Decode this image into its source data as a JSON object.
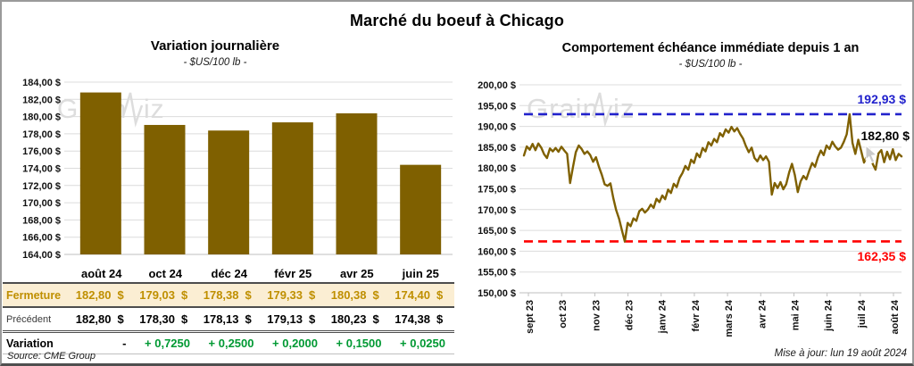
{
  "header": {
    "title": "Marché du boeuf à Chicago"
  },
  "footer": {
    "source": "Source: CME Group",
    "updated": "Mise à jour: lun 19 août 2024"
  },
  "watermark": "GrainWiz",
  "currency": "$",
  "colors": {
    "series": "#7F6000",
    "grid": "#DCDCDC",
    "axis": "#BFBFBF",
    "gold": "#BF8F00",
    "fermeture_bg": "#FBEED3",
    "green": "#009933",
    "blue": "#2222CC",
    "red": "#FF0000",
    "watermark": "#DCDCDC"
  },
  "table": {
    "columns": [
      "août 24",
      "oct 24",
      "déc 24",
      "févr 25",
      "avr 25",
      "juin 25"
    ],
    "rows": [
      {
        "key": "fermeture",
        "label": "Fermeture",
        "currency": true,
        "values": [
          "182,80",
          "179,03",
          "178,38",
          "179,33",
          "180,38",
          "174,40"
        ]
      },
      {
        "key": "precedent",
        "label": "Précédent",
        "currency": true,
        "values": [
          "182,80",
          "178,30",
          "178,13",
          "179,13",
          "180,23",
          "174,38"
        ]
      },
      {
        "key": "variation",
        "label": "Variation",
        "currency": false,
        "values": [
          "-",
          "+ 0,7250",
          "+ 0,2500",
          "+ 0,2000",
          "+ 0,1500",
          "+ 0,0250"
        ]
      }
    ]
  },
  "chart_data": [
    {
      "type": "bar",
      "title": "Variation journalière",
      "subtitle": "- $US/100 lb -",
      "categories": [
        "août 24",
        "oct 24",
        "déc 24",
        "févr 25",
        "avr 25",
        "juin 25"
      ],
      "values": [
        182.8,
        179.03,
        178.38,
        179.33,
        180.38,
        174.4
      ],
      "ylim": [
        164,
        184
      ],
      "ytick_step": 2,
      "y_ticks": [
        "184,00 $",
        "182,00 $",
        "180,00 $",
        "178,00 $",
        "176,00 $",
        "174,00 $",
        "172,00 $",
        "170,00 $",
        "168,00 $",
        "166,00 $",
        "164,00 $"
      ],
      "grid": true,
      "legend": "none",
      "bar_color": "#7F6000"
    },
    {
      "type": "line",
      "title": "Comportement échéance immédiate depuis 1 an",
      "subtitle": "- $US/100 lb -",
      "x_ticks": [
        "sept 23",
        "oct 23",
        "nov 23",
        "déc 23",
        "janv 24",
        "févr 24",
        "mars 24",
        "avr 24",
        "mai 24",
        "juin 24",
        "juil 24",
        "août 24"
      ],
      "ylim": [
        150,
        200
      ],
      "ytick_step": 5,
      "y_ticks": [
        "200,00 $",
        "195,00 $",
        "190,00 $",
        "185,00 $",
        "180,00 $",
        "175,00 $",
        "170,00 $",
        "165,00 $",
        "160,00 $",
        "155,00 $",
        "150,00 $"
      ],
      "grid": true,
      "legend": "none",
      "line_color": "#7F6000",
      "max_line": {
        "value": 192.93,
        "label": "192,93 $",
        "color": "#2222CC"
      },
      "min_line": {
        "value": 162.35,
        "label": "162,35 $",
        "color": "#FF0000"
      },
      "last_label": {
        "value": 182.8,
        "label": "182,80 $"
      },
      "values": [
        183.0,
        185.2,
        184.4,
        185.8,
        184.3,
        185.9,
        184.9,
        183.3,
        182.4,
        184.7,
        184.0,
        184.8,
        183.9,
        185.1,
        184.2,
        183.4,
        176.4,
        180.2,
        183.8,
        185.4,
        184.6,
        183.4,
        184.0,
        183.1,
        181.5,
        182.6,
        180.3,
        178.4,
        176.1,
        175.7,
        176.3,
        172.8,
        169.9,
        167.8,
        165.0,
        162.35,
        166.8,
        166.0,
        167.9,
        167.3,
        169.6,
        170.2,
        169.3,
        170.0,
        171.2,
        170.4,
        172.6,
        171.8,
        173.4,
        172.5,
        174.8,
        174.0,
        176.2,
        175.4,
        177.6,
        178.8,
        180.5,
        179.6,
        182.0,
        181.2,
        183.5,
        182.6,
        184.8,
        184.0,
        186.2,
        185.4,
        187.0,
        186.2,
        188.4,
        187.6,
        189.3,
        188.5,
        189.9,
        188.8,
        189.6,
        188.2,
        187.1,
        185.3,
        183.8,
        184.9,
        182.4,
        181.6,
        183.0,
        181.9,
        182.8,
        181.5,
        173.6,
        176.4,
        175.2,
        176.6,
        174.9,
        176.1,
        178.9,
        181.0,
        178.3,
        174.2,
        176.8,
        178.1,
        177.3,
        179.4,
        181.2,
        180.3,
        182.6,
        184.2,
        183.1,
        185.4,
        184.6,
        186.3,
        185.2,
        184.4,
        184.9,
        186.3,
        188.1,
        192.93,
        186.0,
        183.4,
        186.8,
        184.1,
        181.3,
        183.0,
        184.4,
        181.0,
        179.6,
        183.5,
        184.3,
        181.4,
        183.9,
        182.1,
        184.5,
        181.9,
        183.4,
        182.8
      ]
    }
  ]
}
